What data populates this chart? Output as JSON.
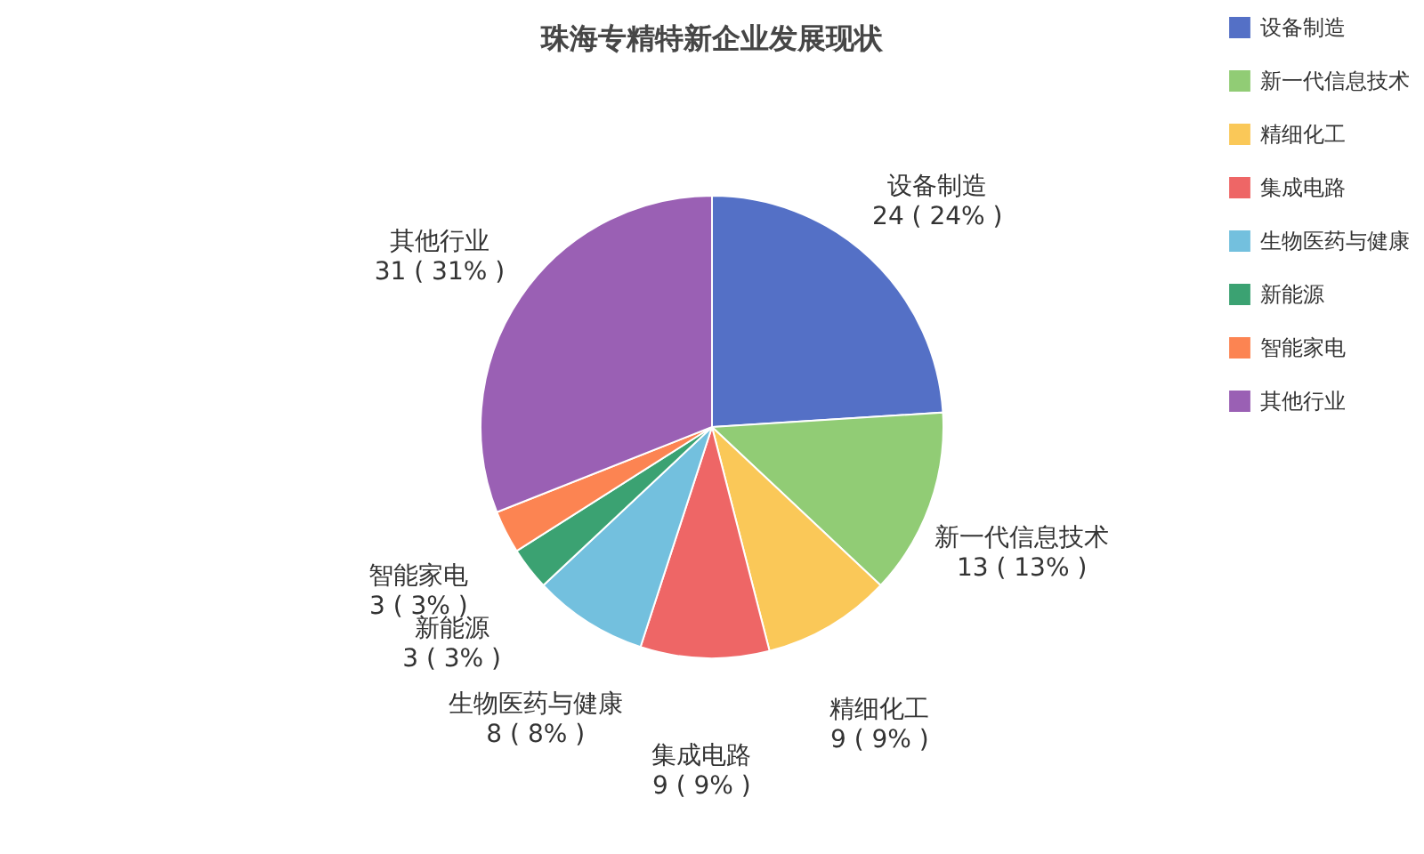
{
  "chart_data": {
    "type": "pie",
    "title": "珠海专精特新企业发展现状",
    "categories": [
      "设备制造",
      "新一代信息技术",
      "精细化工",
      "集成电路",
      "生物医药与健康",
      "新能源",
      "智能家电",
      "其他行业"
    ],
    "values": [
      24,
      13,
      9,
      9,
      8,
      3,
      3,
      31
    ],
    "value_labels": [
      "24 ( 24% )",
      "13 ( 13% )",
      "9 ( 9% )",
      "9 ( 9% )",
      "8 ( 8% )",
      "3 ( 3% )",
      "3 ( 3% )",
      "31 ( 31% )"
    ],
    "colors": [
      "#5470c6",
      "#91cc75",
      "#fac858",
      "#ee6666",
      "#73c0de",
      "#3ba272",
      "#fc8452",
      "#9a60b4"
    ],
    "legend": "top right"
  }
}
